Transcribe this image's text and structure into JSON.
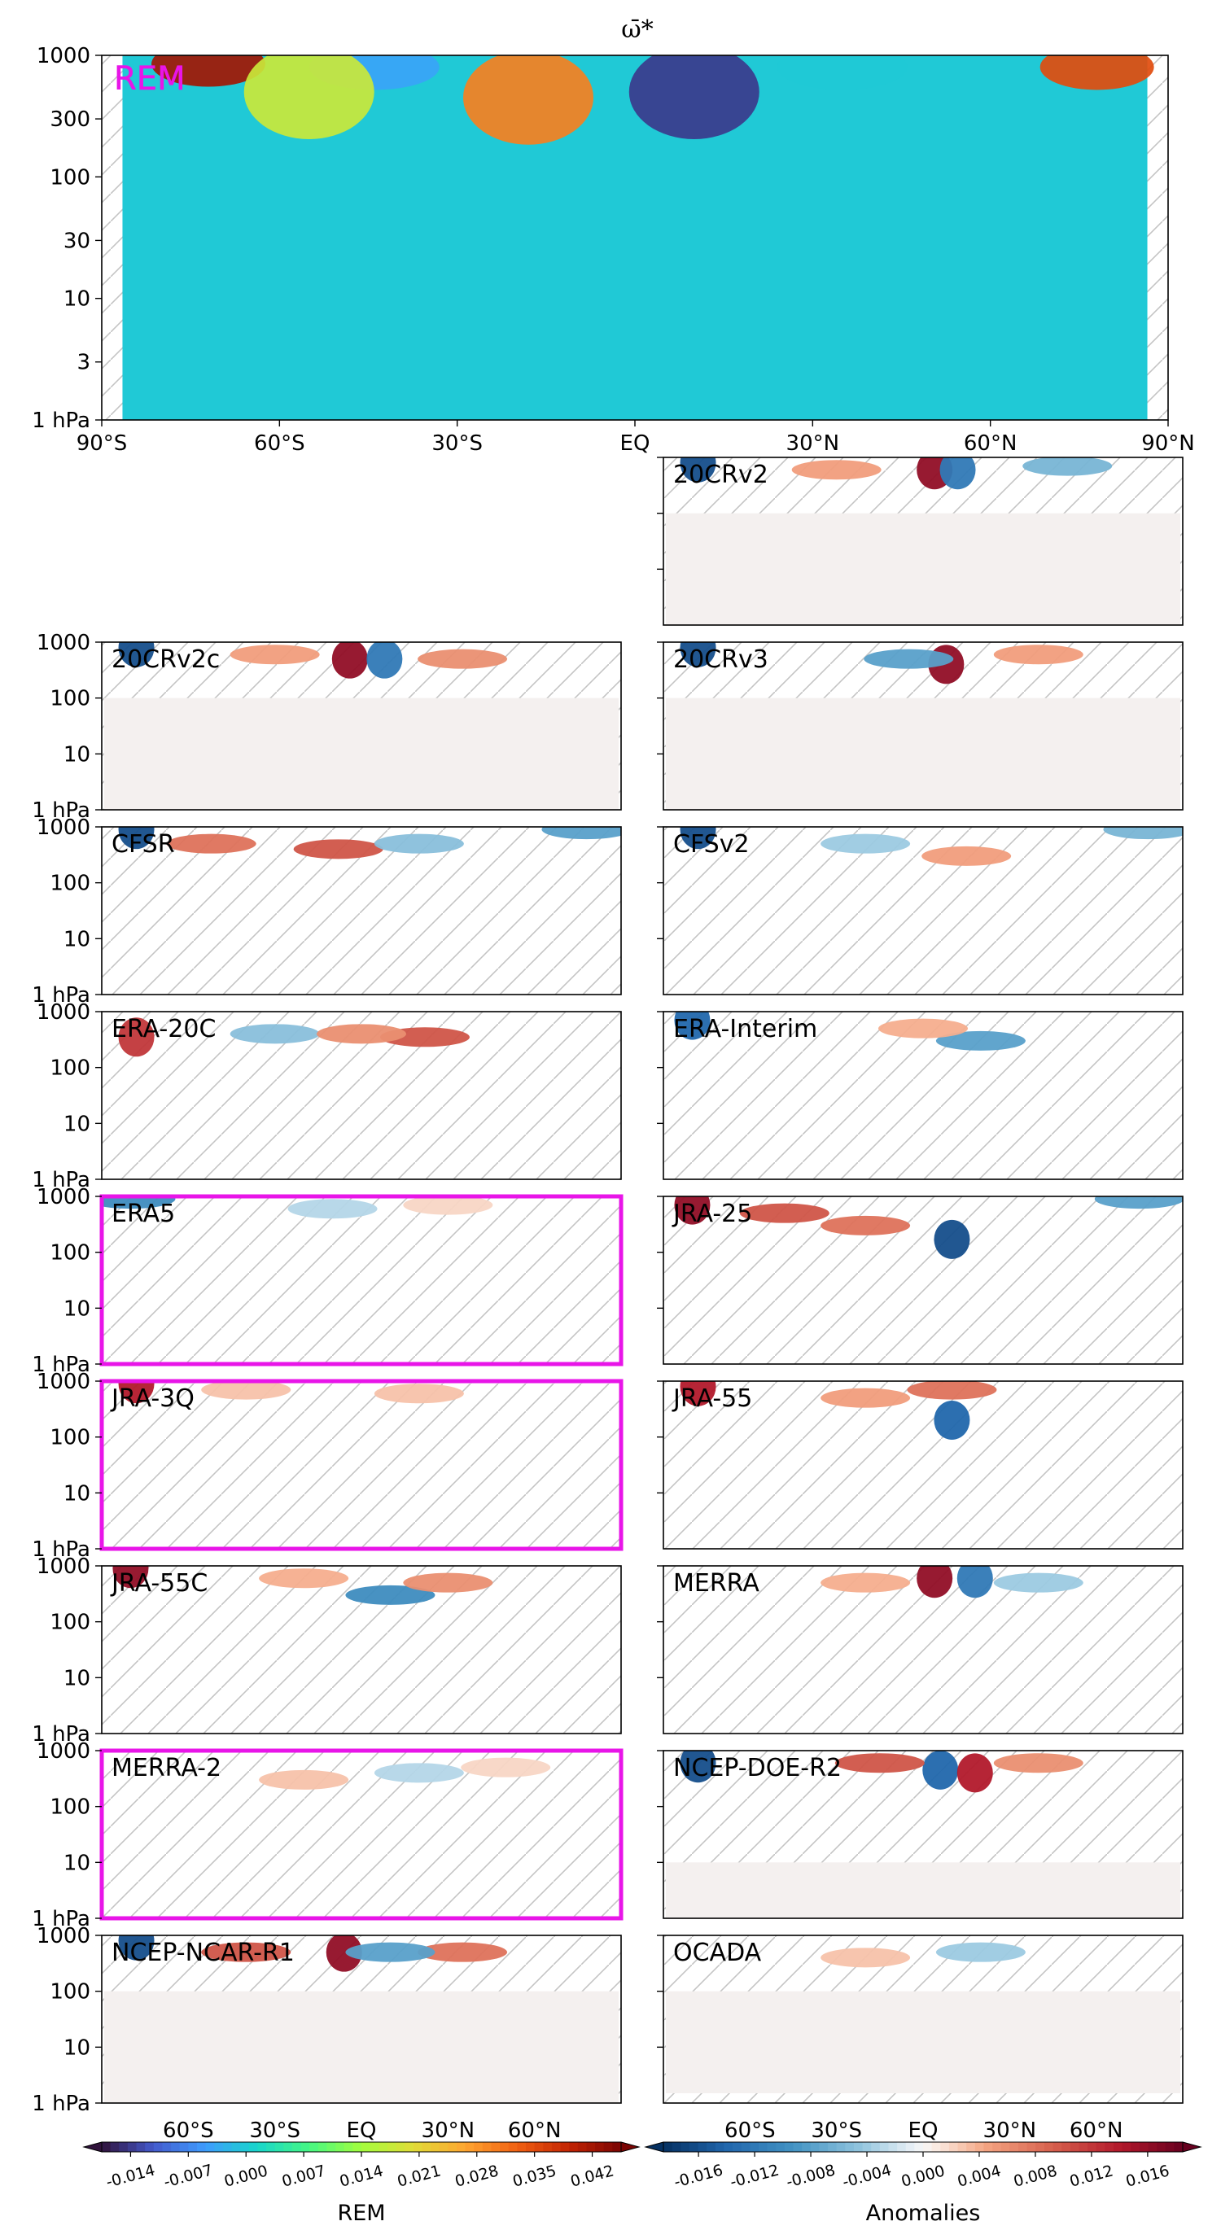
{
  "figure": {
    "title": "ω̄*",
    "highlight_color": "#e815e8",
    "hatch_color": "#bfbfbf"
  },
  "chart_data": {
    "type": "heatmap",
    "quantity": "ω̄*",
    "xaxis": {
      "range": [
        -90,
        90
      ],
      "top_ticks": [
        {
          "value": -90,
          "label": "90°S"
        },
        {
          "value": -60,
          "label": "60°S"
        },
        {
          "value": -30,
          "label": "30°S"
        },
        {
          "value": 0,
          "label": "EQ"
        },
        {
          "value": 30,
          "label": "30°N"
        },
        {
          "value": 60,
          "label": "60°N"
        },
        {
          "value": 90,
          "label": "90°N"
        }
      ],
      "bottom_ticks": [
        {
          "value": -60,
          "label": "60°S"
        },
        {
          "value": -30,
          "label": "30°S"
        },
        {
          "value": 0,
          "label": "EQ"
        },
        {
          "value": 30,
          "label": "30°N"
        },
        {
          "value": 60,
          "label": "60°N"
        }
      ]
    },
    "yaxis": {
      "scale": "log",
      "range_hPa": [
        1000,
        1
      ],
      "top_ticks": [
        {
          "value": 1,
          "label": "1 hPa"
        },
        {
          "value": 3,
          "label": "3"
        },
        {
          "value": 10,
          "label": "10"
        },
        {
          "value": 30,
          "label": "30"
        },
        {
          "value": 100,
          "label": "100"
        },
        {
          "value": 300,
          "label": "300"
        },
        {
          "value": 1000,
          "label": "1000"
        }
      ],
      "panel_ticks": [
        {
          "value": 1,
          "label": "1 hPa"
        },
        {
          "value": 10,
          "label": "10"
        },
        {
          "value": 100,
          "label": "100"
        },
        {
          "value": 1000,
          "label": "1000"
        }
      ]
    },
    "rem_panel": {
      "label": "REM",
      "colormap": "turbo",
      "features": [
        {
          "lat": 10,
          "p": 500,
          "value": -0.014
        },
        {
          "lat": -72,
          "p": 850,
          "value": 0.042
        },
        {
          "lat": 78,
          "p": 800,
          "value": 0.035
        },
        {
          "lat": -18,
          "p": 450,
          "value": 0.03
        },
        {
          "lat": -44,
          "p": 800,
          "value": -0.004
        },
        {
          "lat": 35,
          "p": 800,
          "value": 0.0
        },
        {
          "lat": -55,
          "p": 500,
          "value": 0.018
        }
      ]
    },
    "panels": [
      {
        "name": "20CRv2",
        "row": 0,
        "col": 1,
        "highlight": false,
        "top_hPa": 100,
        "hatch_bottom": false,
        "features": [
          {
            "lat": -78,
            "p": 800,
            "value": -0.016
          },
          {
            "lat": 4,
            "p": 600,
            "value": 0.016
          },
          {
            "lat": 12,
            "p": 600,
            "value": -0.012
          },
          {
            "lat": 50,
            "p": 700,
            "value": -0.006
          },
          {
            "lat": -30,
            "p": 600,
            "value": 0.005
          }
        ]
      },
      {
        "name": "20CRv2c",
        "row": 1,
        "col": 0,
        "highlight": false,
        "top_hPa": 100,
        "hatch_bottom": false,
        "features": [
          {
            "lat": -78,
            "p": 800,
            "value": -0.016
          },
          {
            "lat": -4,
            "p": 500,
            "value": 0.016
          },
          {
            "lat": 8,
            "p": 500,
            "value": -0.012
          },
          {
            "lat": 35,
            "p": 500,
            "value": 0.006
          },
          {
            "lat": -30,
            "p": 600,
            "value": 0.005
          }
        ]
      },
      {
        "name": "20CRv3",
        "row": 1,
        "col": 1,
        "highlight": false,
        "top_hPa": 100,
        "hatch_bottom": false,
        "features": [
          {
            "lat": -78,
            "p": 800,
            "value": -0.016
          },
          {
            "lat": 8,
            "p": 400,
            "value": 0.016
          },
          {
            "lat": -5,
            "p": 500,
            "value": -0.008
          },
          {
            "lat": 40,
            "p": 600,
            "value": 0.005
          }
        ]
      },
      {
        "name": "CFSR",
        "row": 2,
        "col": 0,
        "highlight": false,
        "top_hPa": 1,
        "hatch_bottom": false,
        "features": [
          {
            "lat": -78,
            "p": 900,
            "value": -0.016
          },
          {
            "lat": -52,
            "p": 500,
            "value": 0.008
          },
          {
            "lat": -8,
            "p": 400,
            "value": 0.01
          },
          {
            "lat": 20,
            "p": 500,
            "value": -0.005
          },
          {
            "lat": 78,
            "p": 900,
            "value": -0.008
          }
        ]
      },
      {
        "name": "CFSv2",
        "row": 2,
        "col": 1,
        "highlight": false,
        "top_hPa": 1,
        "hatch_bottom": false,
        "features": [
          {
            "lat": -78,
            "p": 900,
            "value": -0.016
          },
          {
            "lat": 15,
            "p": 300,
            "value": 0.005
          },
          {
            "lat": -20,
            "p": 500,
            "value": -0.004
          },
          {
            "lat": 78,
            "p": 900,
            "value": -0.006
          }
        ]
      },
      {
        "name": "ERA-20C",
        "row": 3,
        "col": 0,
        "highlight": false,
        "top_hPa": 1,
        "hatch_bottom": false,
        "features": [
          {
            "lat": -78,
            "p": 350,
            "value": 0.012
          },
          {
            "lat": -30,
            "p": 400,
            "value": -0.005
          },
          {
            "lat": 22,
            "p": 350,
            "value": 0.01
          },
          {
            "lat": 0,
            "p": 400,
            "value": 0.006
          }
        ]
      },
      {
        "name": "ERA-Interim",
        "row": 3,
        "col": 1,
        "highlight": false,
        "top_hPa": 1,
        "hatch_bottom": false,
        "features": [
          {
            "lat": -80,
            "p": 700,
            "value": -0.014
          },
          {
            "lat": 20,
            "p": 300,
            "value": -0.008
          },
          {
            "lat": 0,
            "p": 500,
            "value": 0.004
          }
        ]
      },
      {
        "name": "ERA5",
        "row": 4,
        "col": 0,
        "highlight": true,
        "top_hPa": 1,
        "hatch_bottom": false,
        "features": [
          {
            "lat": -80,
            "p": 900,
            "value": -0.01
          },
          {
            "lat": -10,
            "p": 600,
            "value": -0.003
          },
          {
            "lat": 30,
            "p": 700,
            "value": 0.002
          }
        ]
      },
      {
        "name": "JRA-25",
        "row": 4,
        "col": 1,
        "highlight": false,
        "top_hPa": 1,
        "hatch_bottom": false,
        "features": [
          {
            "lat": -80,
            "p": 700,
            "value": 0.016
          },
          {
            "lat": 10,
            "p": 170,
            "value": -0.016
          },
          {
            "lat": -20,
            "p": 300,
            "value": 0.008
          },
          {
            "lat": -48,
            "p": 500,
            "value": 0.01
          },
          {
            "lat": 75,
            "p": 900,
            "value": -0.008
          }
        ]
      },
      {
        "name": "JRA-3Q",
        "row": 5,
        "col": 0,
        "highlight": true,
        "top_hPa": 1,
        "hatch_bottom": false,
        "features": [
          {
            "lat": -78,
            "p": 900,
            "value": 0.014
          },
          {
            "lat": -40,
            "p": 700,
            "value": 0.003
          },
          {
            "lat": 20,
            "p": 600,
            "value": 0.003
          }
        ]
      },
      {
        "name": "JRA-55",
        "row": 5,
        "col": 1,
        "highlight": false,
        "top_hPa": 1,
        "hatch_bottom": false,
        "features": [
          {
            "lat": -78,
            "p": 800,
            "value": 0.014
          },
          {
            "lat": 10,
            "p": 200,
            "value": -0.014
          },
          {
            "lat": 10,
            "p": 700,
            "value": 0.008
          },
          {
            "lat": -20,
            "p": 500,
            "value": 0.005
          }
        ]
      },
      {
        "name": "JRA-55C",
        "row": 6,
        "col": 0,
        "highlight": false,
        "top_hPa": 1,
        "hatch_bottom": false,
        "features": [
          {
            "lat": -80,
            "p": 900,
            "value": 0.016
          },
          {
            "lat": 10,
            "p": 300,
            "value": -0.01
          },
          {
            "lat": 30,
            "p": 500,
            "value": 0.006
          },
          {
            "lat": -20,
            "p": 600,
            "value": 0.004
          }
        ]
      },
      {
        "name": "MERRA",
        "row": 6,
        "col": 1,
        "highlight": false,
        "top_hPa": 1,
        "hatch_bottom": true,
        "features": [
          {
            "lat": 4,
            "p": 600,
            "value": 0.016
          },
          {
            "lat": 18,
            "p": 600,
            "value": -0.012
          },
          {
            "lat": -20,
            "p": 500,
            "value": 0.004
          },
          {
            "lat": 40,
            "p": 500,
            "value": -0.004
          }
        ]
      },
      {
        "name": "MERRA-2",
        "row": 7,
        "col": 0,
        "highlight": true,
        "top_hPa": 1,
        "hatch_bottom": true,
        "features": [
          {
            "lat": -20,
            "p": 300,
            "value": 0.003
          },
          {
            "lat": 20,
            "p": 400,
            "value": -0.003
          },
          {
            "lat": 50,
            "p": 500,
            "value": 0.002
          }
        ]
      },
      {
        "name": "NCEP-DOE-R2",
        "row": 7,
        "col": 1,
        "highlight": false,
        "top_hPa": 10,
        "hatch_bottom": false,
        "features": [
          {
            "lat": -78,
            "p": 600,
            "value": -0.016
          },
          {
            "lat": 6,
            "p": 450,
            "value": -0.014
          },
          {
            "lat": 18,
            "p": 400,
            "value": 0.014
          },
          {
            "lat": -15,
            "p": 600,
            "value": 0.01
          },
          {
            "lat": 40,
            "p": 600,
            "value": 0.006
          }
        ]
      },
      {
        "name": "NCEP-NCAR-R1",
        "row": 8,
        "col": 0,
        "highlight": false,
        "top_hPa": 100,
        "hatch_bottom": false,
        "features": [
          {
            "lat": -78,
            "p": 800,
            "value": -0.016
          },
          {
            "lat": -6,
            "p": 500,
            "value": 0.016
          },
          {
            "lat": 35,
            "p": 500,
            "value": 0.008
          },
          {
            "lat": -40,
            "p": 500,
            "value": 0.01
          },
          {
            "lat": 10,
            "p": 500,
            "value": -0.008
          }
        ]
      },
      {
        "name": "OCADA",
        "row": 8,
        "col": 1,
        "highlight": false,
        "top_hPa": 100,
        "hatch_bottom": true,
        "features": [
          {
            "lat": 20,
            "p": 500,
            "value": -0.004
          },
          {
            "lat": -20,
            "p": 400,
            "value": 0.003
          }
        ]
      }
    ],
    "colorbars": [
      {
        "label": "REM",
        "colormap": "turbo",
        "range": [
          -0.0175,
          0.0455
        ],
        "ticks": [
          "-0.014",
          "-0.007",
          "0.000",
          "0.007",
          "0.014",
          "0.021",
          "0.028",
          "0.035",
          "0.042"
        ]
      },
      {
        "label": "Anomalies",
        "colormap": "RdBu_r",
        "range": [
          -0.0185,
          0.0185
        ],
        "ticks": [
          "-0.016",
          "-0.012",
          "-0.008",
          "-0.004",
          "0.000",
          "0.004",
          "0.008",
          "0.012",
          "0.016"
        ]
      }
    ]
  }
}
